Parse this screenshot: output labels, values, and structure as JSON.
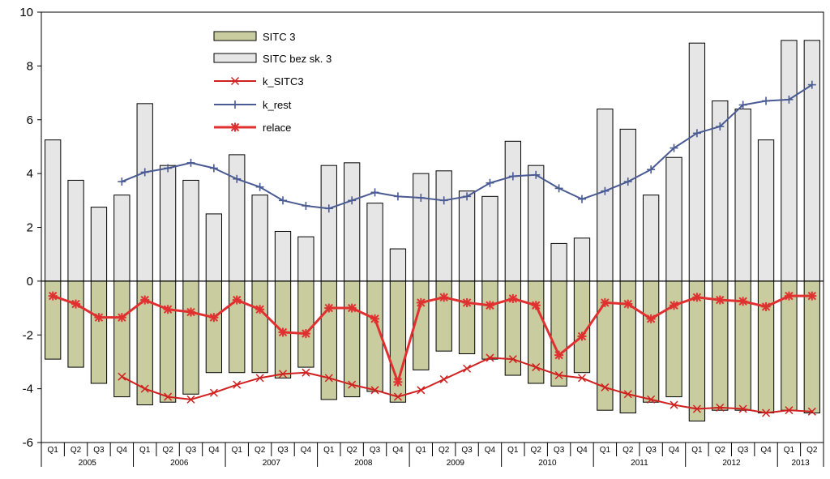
{
  "chart_data": {
    "type": "bar",
    "ylim": [
      -6,
      10
    ],
    "yticks": [
      -6,
      -4,
      -2,
      0,
      2,
      4,
      6,
      8,
      10
    ],
    "quarters": [
      "Q1",
      "Q2",
      "Q3",
      "Q4",
      "Q1",
      "Q2",
      "Q3",
      "Q4",
      "Q1",
      "Q2",
      "Q3",
      "Q4",
      "Q1",
      "Q2",
      "Q3",
      "Q4",
      "Q1",
      "Q2",
      "Q3",
      "Q4",
      "Q1",
      "Q2",
      "Q3",
      "Q4",
      "Q1",
      "Q2",
      "Q3",
      "Q4",
      "Q1",
      "Q2",
      "Q3",
      "Q4",
      "Q1",
      "Q2"
    ],
    "years": [
      {
        "label": "2005",
        "count": 4
      },
      {
        "label": "2006",
        "count": 4
      },
      {
        "label": "2007",
        "count": 4
      },
      {
        "label": "2008",
        "count": 4
      },
      {
        "label": "2009",
        "count": 4
      },
      {
        "label": "2010",
        "count": 4
      },
      {
        "label": "2011",
        "count": 4
      },
      {
        "label": "2012",
        "count": 4
      },
      {
        "label": "2013",
        "count": 2
      }
    ],
    "series": [
      {
        "name": "SITC 3",
        "kind": "bar",
        "color": "#c9cc9e",
        "values": [
          -2.9,
          -3.2,
          -3.8,
          -4.3,
          -4.6,
          -4.5,
          -4.2,
          -3.4,
          -3.4,
          -3.4,
          -3.6,
          -3.2,
          -4.4,
          -4.3,
          -4.1,
          -4.5,
          -3.3,
          -2.6,
          -2.7,
          -2.9,
          -3.5,
          -3.8,
          -3.9,
          -3.4,
          -4.8,
          -4.9,
          -4.5,
          -4.3,
          -5.2,
          -4.8,
          -4.8,
          -4.9,
          -4.8,
          -4.9
        ]
      },
      {
        "name": "SITC bez sk. 3",
        "kind": "bar",
        "color": "#e6e6e6",
        "values": [
          5.25,
          3.75,
          2.75,
          3.2,
          6.6,
          4.3,
          3.75,
          2.5,
          4.7,
          3.2,
          1.85,
          1.65,
          4.3,
          4.4,
          2.9,
          1.2,
          4.0,
          4.1,
          3.35,
          3.15,
          5.2,
          4.3,
          1.4,
          1.6,
          6.4,
          5.65,
          3.2,
          4.6,
          8.85,
          6.7,
          6.4,
          5.25,
          8.95,
          8.95
        ]
      },
      {
        "name": "k_SITC3",
        "kind": "line",
        "color": "#d02020",
        "values": [
          null,
          null,
          null,
          -3.55,
          -4.0,
          -4.3,
          -4.4,
          -4.15,
          -3.85,
          -3.6,
          -3.45,
          -3.4,
          -3.6,
          -3.85,
          -4.05,
          -4.3,
          -4.05,
          -3.65,
          -3.25,
          -2.85,
          -2.9,
          -3.2,
          -3.5,
          -3.6,
          -3.95,
          -4.2,
          -4.4,
          -4.6,
          -4.75,
          -4.7,
          -4.75,
          -4.9,
          -4.8,
          -4.85
        ]
      },
      {
        "name": "k_rest",
        "kind": "line",
        "color": "#4a5a92",
        "values": [
          null,
          null,
          null,
          3.7,
          4.05,
          4.2,
          4.4,
          4.2,
          3.8,
          3.5,
          3.0,
          2.8,
          2.7,
          3.0,
          3.3,
          3.15,
          3.1,
          3.0,
          3.15,
          3.65,
          3.9,
          3.95,
          3.45,
          3.05,
          3.35,
          3.7,
          4.15,
          4.95,
          5.5,
          5.75,
          6.55,
          6.7,
          6.75,
          7.3
        ]
      },
      {
        "name": "relace",
        "kind": "line",
        "color": "#e03030",
        "values": [
          -0.55,
          -0.85,
          -1.35,
          -1.35,
          -0.7,
          -1.05,
          -1.15,
          -1.35,
          -0.7,
          -1.05,
          -1.9,
          -1.95,
          -1.0,
          -1.0,
          -1.4,
          -3.75,
          -0.8,
          -0.6,
          -0.8,
          -0.9,
          -0.65,
          -0.9,
          -2.75,
          -2.05,
          -0.8,
          -0.85,
          -1.4,
          -0.9,
          -0.6,
          -0.7,
          -0.75,
          -0.95,
          -0.55,
          -0.55
        ]
      }
    ],
    "legend_position": "top-center"
  }
}
